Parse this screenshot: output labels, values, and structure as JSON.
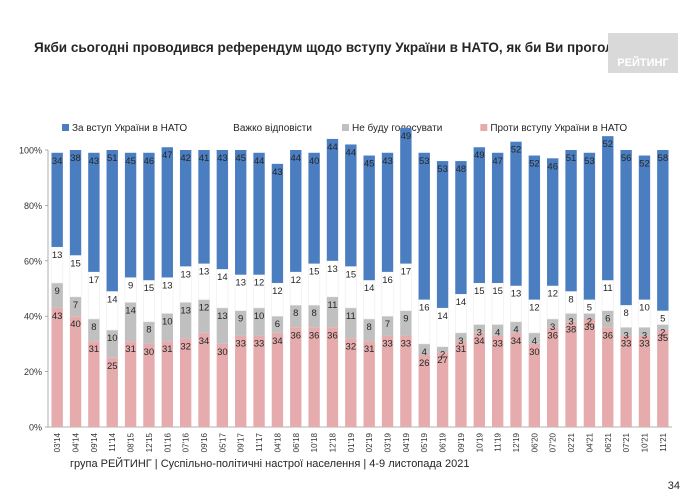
{
  "title": "Якби сьогодні проводився референдум щодо вступу України в НАТО, як би Ви проголосували?",
  "logo_text": "РЕЙТИНГ",
  "footer": "група РЕЙТИНГ | Суспільно-політичні настрої населення  | 4-9 листопада 2021",
  "page_number": "34",
  "chart_data": {
    "type": "bar",
    "stacked": true,
    "percent": true,
    "ylim": [
      0,
      100
    ],
    "yticks": [
      "0%",
      "20%",
      "40%",
      "60%",
      "80%",
      "100%"
    ],
    "legend_position": "top",
    "categories": [
      "03'14",
      "04'14",
      "09'14",
      "11'14",
      "08'15",
      "12'15",
      "01'16",
      "07'16",
      "09'16",
      "05'17",
      "09'17",
      "11'17",
      "04'18",
      "06'18",
      "10'18",
      "12'18",
      "01'19",
      "02'19",
      "03'19",
      "04'19",
      "05'19",
      "06'19",
      "09'19",
      "10'19",
      "11'19",
      "12'19",
      "06'20",
      "07'20",
      "02'21",
      "04'21",
      "06'21",
      "07'21",
      "10'21",
      "11'21"
    ],
    "series": [
      {
        "name": "Проти вступу України в НАТО",
        "color": "#e6acad",
        "values": [
          43,
          40,
          31,
          25,
          31,
          30,
          31,
          32,
          34,
          30,
          33,
          33,
          34,
          36,
          36,
          36,
          32,
          31,
          33,
          33,
          26,
          27,
          31,
          34,
          33,
          34,
          30,
          36,
          38,
          39,
          36,
          33,
          33,
          35
        ]
      },
      {
        "name": "Не буду голосувати",
        "color": "#c0c0c0",
        "values": [
          9,
          7,
          8,
          10,
          14,
          8,
          10,
          13,
          12,
          13,
          9,
          10,
          6,
          8,
          8,
          11,
          11,
          8,
          7,
          9,
          4,
          2,
          3,
          3,
          4,
          4,
          4,
          3,
          3,
          2,
          6,
          3,
          3,
          2
        ]
      },
      {
        "name": "Важко відповісти",
        "color": "#ffffff",
        "values": [
          13,
          15,
          17,
          14,
          9,
          15,
          13,
          13,
          13,
          14,
          13,
          12,
          12,
          12,
          15,
          13,
          15,
          14,
          16,
          17,
          16,
          14,
          14,
          15,
          15,
          13,
          12,
          12,
          8,
          5,
          11,
          8,
          10,
          5
        ]
      },
      {
        "name": "За вступ України в НАТО",
        "color": "#4a7ec0",
        "values": [
          34,
          38,
          43,
          51,
          45,
          46,
          47,
          42,
          41,
          43,
          45,
          44,
          43,
          44,
          40,
          44,
          44,
          45,
          43,
          49,
          53,
          53,
          48,
          49,
          47,
          52,
          52,
          46,
          51,
          53,
          52,
          56,
          52,
          58
        ]
      }
    ],
    "legend_order": [
      "За вступ України в НАТО",
      "Важко відповісти",
      "Не буду голосувати",
      "Проти вступу України в НАТО"
    ]
  }
}
